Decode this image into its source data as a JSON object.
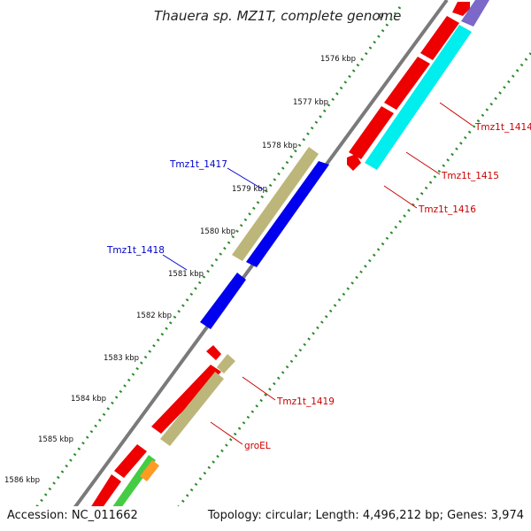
{
  "title": "Thauera sp. MZ1T, complete genome",
  "title_suffix": "p",
  "footer": {
    "accession": "Accession: NC_011662",
    "summary": "Topology: circular; Length: 4,496,212 bp; Genes: 3,974"
  },
  "colors": {
    "backbone": "#7a7a7a",
    "ticks_inner": "#2b8a2b",
    "ticks_outer": "#2b8a2b",
    "forward_cds": "#0000ee",
    "forward_hit": "#bdb67a",
    "reverse_cds": "#ee0000",
    "reverse_hit": "#bdb67a",
    "cyan_feature": "#00eeee",
    "purple_feature": "#7b68c8",
    "green_feature": "#44cc44",
    "orange_feature": "#ff9a22",
    "label_blue": "#0000cc",
    "label_red": "#cc0000"
  },
  "scale_labels": [
    {
      "text": "1576 kbp"
    },
    {
      "text": "1577 kbp"
    },
    {
      "text": "1578 kbp"
    },
    {
      "text": "1579 kbp"
    },
    {
      "text": "1580 kbp"
    },
    {
      "text": "1581 kbp"
    },
    {
      "text": "1582 kbp"
    },
    {
      "text": "1583 kbp"
    },
    {
      "text": "1584 kbp"
    },
    {
      "text": "1585 kbp"
    },
    {
      "text": "1586 kbp"
    }
  ],
  "gene_labels": [
    {
      "name": "Tmz1t_1414",
      "color": "red"
    },
    {
      "name": "Tmz1t_1415",
      "color": "red"
    },
    {
      "name": "Tmz1t_1416",
      "color": "red"
    },
    {
      "name": "Tmz1t_1417",
      "color": "blue"
    },
    {
      "name": "Tmz1t_1418",
      "color": "blue"
    },
    {
      "name": "Tmz1t_1419",
      "color": "red"
    },
    {
      "name": "groEL",
      "color": "red"
    }
  ]
}
